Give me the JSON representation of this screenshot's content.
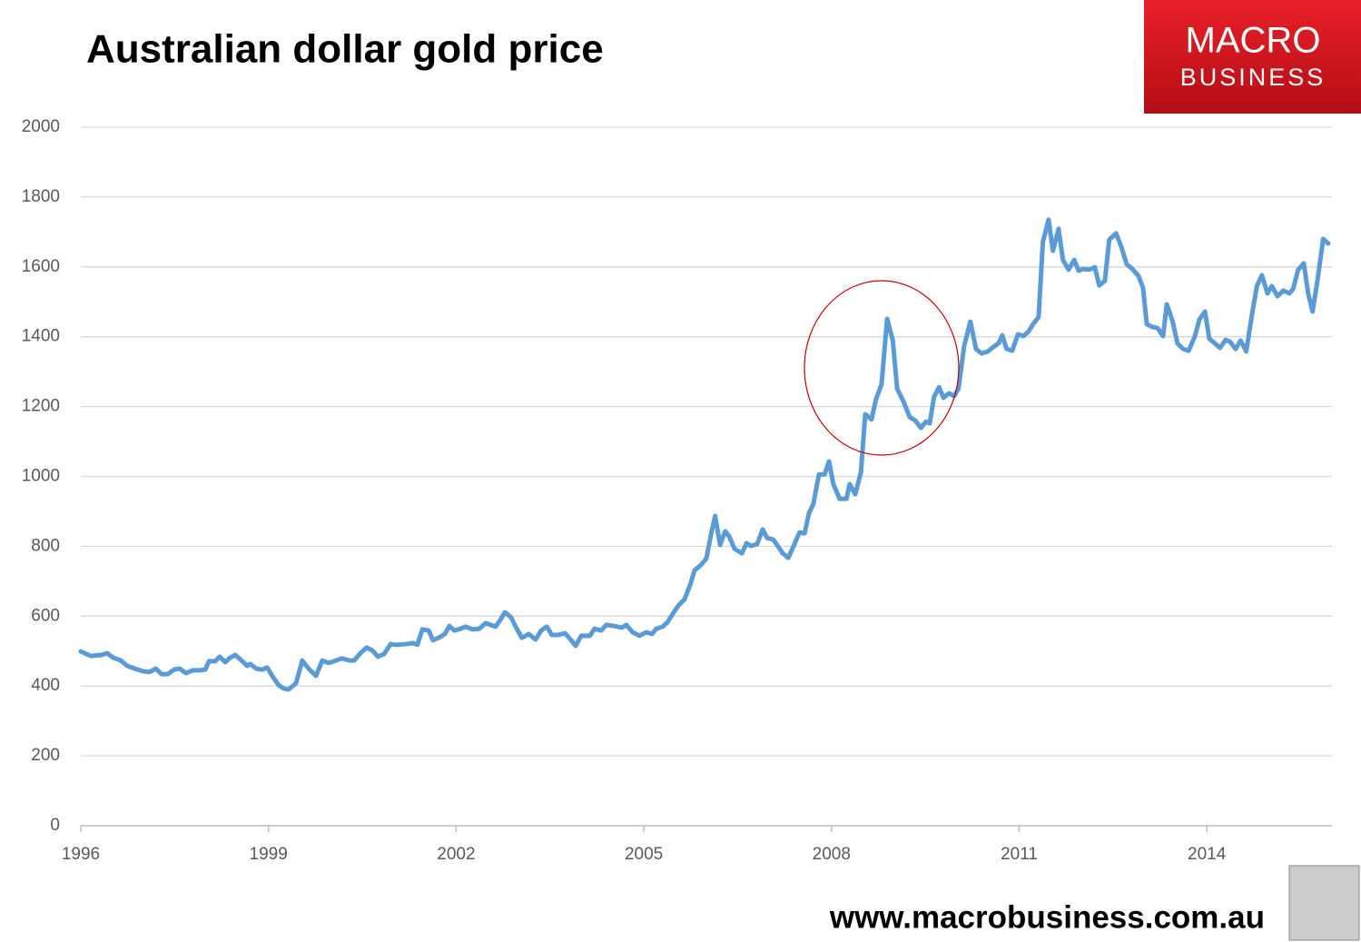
{
  "chart_data": {
    "type": "line",
    "title": "Australian dollar gold price",
    "x": [
      1996,
      1996.16,
      1996.33,
      1996.42,
      1996.52,
      1996.64,
      1996.74,
      1996.86,
      1997,
      1997.1,
      1997.2,
      1997.29,
      1997.39,
      1997.49,
      1997.58,
      1997.68,
      1997.79,
      1997.9,
      1997.99,
      1998.05,
      1998.15,
      1998.22,
      1998.31,
      1998.37,
      1998.47,
      1998.57,
      1998.66,
      1998.71,
      1998.8,
      1998.9,
      1998.98,
      1999.06,
      1999.16,
      1999.24,
      1999.32,
      1999.44,
      1999.54,
      1999.64,
      1999.76,
      1999.86,
      1999.96,
      2000.05,
      2000.17,
      2000.3,
      2000.37,
      2000.47,
      2000.57,
      2000.66,
      2000.75,
      2000.85,
      2000.95,
      2001.04,
      2001.2,
      2001.31,
      2001.38,
      2001.46,
      2001.56,
      2001.63,
      2001.75,
      2001.82,
      2001.89,
      2001.97,
      2002.07,
      2002.15,
      2002.26,
      2002.37,
      2002.47,
      2002.55,
      2002.63,
      2002.69,
      2002.78,
      2002.88,
      2002.95,
      2003.05,
      2003.16,
      2003.27,
      2003.36,
      2003.45,
      2003.53,
      2003.62,
      2003.74,
      2003.84,
      2003.91,
      2004,
      2004.14,
      2004.21,
      2004.32,
      2004.4,
      2004.52,
      2004.65,
      2004.72,
      2004.82,
      2004.93,
      2005.04,
      2005.13,
      2005.2,
      2005.3,
      2005.38,
      2005.46,
      2005.56,
      2005.65,
      2005.74,
      2005.81,
      2005.91,
      2006,
      2006.07,
      2006.14,
      2006.22,
      2006.3,
      2006.36,
      2006.45,
      2006.57,
      2006.64,
      2006.71,
      2006.81,
      2006.9,
      2006.97,
      2007.07,
      2007.13,
      2007.22,
      2007.31,
      2007.42,
      2007.49,
      2007.57,
      2007.64,
      2007.71,
      2007.8,
      2007.89,
      2007.96,
      2008.03,
      2008.13,
      2008.24,
      2008.29,
      2008.38,
      2008.47,
      2008.54,
      2008.64,
      2008.71,
      2008.8,
      2008.89,
      2008.98,
      2009.05,
      2009.15,
      2009.25,
      2009.34,
      2009.43,
      2009.51,
      2009.57,
      2009.64,
      2009.72,
      2009.79,
      2009.88,
      2009.96,
      2010.03,
      2010.12,
      2010.22,
      2010.31,
      2010.4,
      2010.5,
      2010.59,
      2010.67,
      2010.73,
      2010.8,
      2010.89,
      2010.98,
      2011.07,
      2011.15,
      2011.23,
      2011.31,
      2011.38,
      2011.47,
      2011.54,
      2011.63,
      2011.7,
      2011.79,
      2011.88,
      2011.95,
      2012.02,
      2012.12,
      2012.21,
      2012.28,
      2012.37,
      2012.44,
      2012.55,
      2012.63,
      2012.72,
      2012.81,
      2012.91,
      2012.98,
      2013.04,
      2013.13,
      2013.21,
      2013.3,
      2013.36,
      2013.45,
      2013.53,
      2013.62,
      2013.71,
      2013.81,
      2013.88,
      2013.97,
      2014.04,
      2014.11,
      2014.21,
      2014.3,
      2014.37,
      2014.46,
      2014.54,
      2014.63,
      2014.72,
      2014.8,
      2014.88,
      2014.97,
      2015.04,
      2015.13,
      2015.22,
      2015.32,
      2015.38,
      2015.46,
      2015.55,
      2015.62,
      2015.69,
      2015.77,
      2015.86,
      2015.94
    ],
    "values": [
      499,
      486,
      489,
      494,
      481,
      473,
      458,
      450,
      442,
      440,
      450,
      434,
      434,
      447,
      450,
      437,
      445,
      445,
      447,
      471,
      471,
      484,
      468,
      479,
      489,
      473,
      458,
      463,
      450,
      447,
      453,
      429,
      403,
      393,
      390,
      408,
      473,
      450,
      429,
      473,
      466,
      471,
      479,
      473,
      473,
      494,
      510,
      502,
      484,
      492,
      520,
      518,
      520,
      523,
      518,
      562,
      559,
      531,
      541,
      549,
      572,
      559,
      564,
      570,
      562,
      564,
      580,
      575,
      570,
      585,
      611,
      596,
      570,
      538,
      549,
      533,
      559,
      570,
      546,
      546,
      551,
      531,
      515,
      544,
      544,
      564,
      559,
      575,
      572,
      567,
      575,
      554,
      544,
      554,
      549,
      564,
      570,
      583,
      606,
      632,
      648,
      689,
      731,
      746,
      765,
      830,
      887,
      804,
      843,
      830,
      793,
      780,
      809,
      801,
      806,
      848,
      824,
      819,
      804,
      780,
      767,
      811,
      840,
      837,
      895,
      921,
      1006,
      1006,
      1043,
      978,
      936,
      936,
      978,
      949,
      1012,
      1178,
      1163,
      1220,
      1264,
      1451,
      1389,
      1251,
      1215,
      1170,
      1160,
      1139,
      1157,
      1152,
      1228,
      1256,
      1225,
      1238,
      1230,
      1251,
      1373,
      1443,
      1365,
      1352,
      1358,
      1371,
      1381,
      1404,
      1365,
      1360,
      1407,
      1402,
      1415,
      1438,
      1456,
      1672,
      1735,
      1646,
      1709,
      1620,
      1592,
      1620,
      1589,
      1594,
      1592,
      1599,
      1547,
      1560,
      1678,
      1696,
      1659,
      1607,
      1594,
      1573,
      1540,
      1436,
      1428,
      1425,
      1402,
      1493,
      1446,
      1381,
      1365,
      1360,
      1402,
      1449,
      1472,
      1394,
      1384,
      1368,
      1391,
      1386,
      1365,
      1389,
      1358,
      1462,
      1545,
      1576,
      1524,
      1545,
      1516,
      1532,
      1524,
      1537,
      1592,
      1610,
      1524,
      1472,
      1563,
      1680,
      1667
    ],
    "color": "#5b9bd5",
    "xlim": [
      1996,
      2016
    ],
    "xticks": [
      1996,
      1999,
      2002,
      2005,
      2008,
      2011,
      2014
    ],
    "ylim": [
      0,
      2000
    ],
    "yticks": [
      0,
      200,
      400,
      600,
      800,
      1000,
      1200,
      1400,
      1600,
      1800,
      2000
    ],
    "grid": true
  },
  "logo": {
    "line1": "MACRO",
    "line2": "BUSINESS"
  },
  "footer": {
    "url": "www.macrobusiness.com.au"
  }
}
